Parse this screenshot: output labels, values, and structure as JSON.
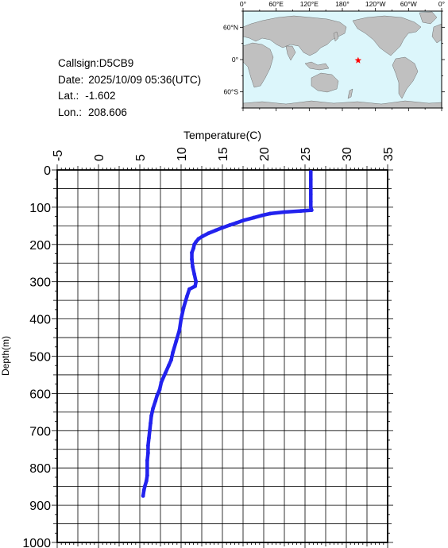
{
  "station": {
    "callsign_label": "Callsign:",
    "callsign": "D5CB9",
    "date_label": "Date:",
    "date": "2025/10/09 05:36(UTC)",
    "lat_label": "Lat.:",
    "lat": "-1.602",
    "lon_label": "Lon.:",
    "lon": "208.606"
  },
  "map": {
    "top_labels": [
      "0°",
      "60°E",
      "120°E",
      "180°",
      "120°W",
      "60°W",
      "0°"
    ],
    "left_labels": [
      "60°N",
      "0°",
      "60°S"
    ],
    "ocean_color": "#dcf6fb",
    "land_color": "#c0c0c0",
    "marker_color": "#ff0000",
    "marker_icon": "star-icon"
  },
  "chart_data": {
    "type": "line",
    "title": "",
    "xlabel": "Temperature(C)",
    "ylabel": "Depth(m)",
    "xlim": [
      -5,
      35
    ],
    "ylim": [
      1000,
      0
    ],
    "x_ticks": [
      "-5",
      "0",
      "5",
      "10",
      "15",
      "20",
      "25",
      "30",
      "35"
    ],
    "y_ticks": [
      "0",
      "100",
      "200",
      "300",
      "400",
      "500",
      "600",
      "700",
      "800",
      "900",
      "1000"
    ],
    "grid": true,
    "color": "#2222ee",
    "series": [
      {
        "points": [
          [
            25.7,
            5
          ],
          [
            25.7,
            25
          ],
          [
            25.7,
            45
          ],
          [
            25.7,
            65
          ],
          [
            25.7,
            85
          ],
          [
            25.7,
            100
          ],
          [
            25.8,
            108
          ],
          [
            24.5,
            110
          ],
          [
            22.5,
            113
          ],
          [
            20.8,
            117
          ],
          [
            19.8,
            122
          ],
          [
            18.8,
            128
          ],
          [
            17.6,
            135
          ],
          [
            16.7,
            142
          ],
          [
            15.9,
            148
          ],
          [
            15.0,
            155
          ],
          [
            14.2,
            162
          ],
          [
            13.3,
            170
          ],
          [
            12.6,
            178
          ],
          [
            12.1,
            185
          ],
          [
            11.8,
            193
          ],
          [
            11.6,
            200
          ],
          [
            11.5,
            210
          ],
          [
            11.3,
            222
          ],
          [
            11.3,
            240
          ],
          [
            11.4,
            260
          ],
          [
            11.6,
            280
          ],
          [
            11.8,
            300
          ],
          [
            11.7,
            312
          ],
          [
            11.0,
            320
          ],
          [
            10.7,
            340
          ],
          [
            10.3,
            370
          ],
          [
            10.0,
            400
          ],
          [
            9.8,
            430
          ],
          [
            9.4,
            460
          ],
          [
            9.0,
            490
          ],
          [
            8.8,
            510
          ],
          [
            8.5,
            525
          ],
          [
            8.1,
            545
          ],
          [
            7.6,
            570
          ],
          [
            7.4,
            590
          ],
          [
            7.1,
            605
          ],
          [
            6.9,
            620
          ],
          [
            6.6,
            640
          ],
          [
            6.4,
            660
          ],
          [
            6.3,
            680
          ],
          [
            6.2,
            700
          ],
          [
            6.1,
            720
          ],
          [
            6.0,
            740
          ],
          [
            6.0,
            760
          ],
          [
            5.9,
            780
          ],
          [
            5.9,
            800
          ],
          [
            5.9,
            820
          ],
          [
            5.8,
            835
          ],
          [
            5.6,
            850
          ],
          [
            5.5,
            860
          ],
          [
            5.4,
            875
          ]
        ]
      }
    ]
  }
}
